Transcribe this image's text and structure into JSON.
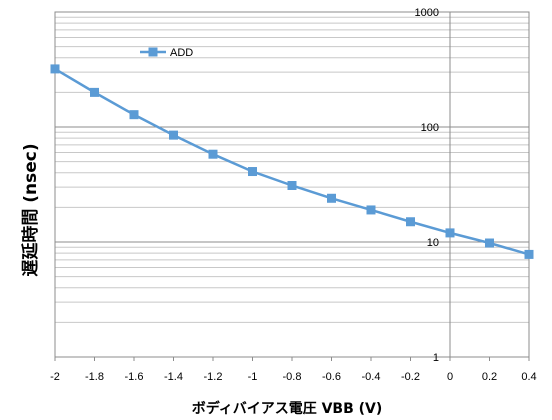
{
  "chart_data": {
    "type": "line",
    "xlabel": "ボディバイアス電圧 VBB (V)",
    "ylabel": "遅延時間 (nsec)",
    "y_scale": "log",
    "xlim": [
      -2,
      0.4
    ],
    "ylim": [
      1,
      1000
    ],
    "grid": true,
    "legend_position": "top-left",
    "x_ticks": [
      "-2",
      "-1.8",
      "-1.6",
      "-1.4",
      "-1.2",
      "-1",
      "-0.8",
      "-0.6",
      "-0.4",
      "-0.2",
      "0",
      "0.2",
      "0.4"
    ],
    "y_ticks": [
      "1",
      "10",
      "100",
      "1000"
    ],
    "series": [
      {
        "name": "ADD",
        "color": "#5b9bd5",
        "marker": "square",
        "x": [
          -2,
          -1.8,
          -1.6,
          -1.4,
          -1.2,
          -1,
          -0.8,
          -0.6,
          -0.4,
          -0.2,
          0,
          0.2,
          0.4
        ],
        "y": [
          320,
          200,
          128,
          85,
          58,
          41,
          31,
          24,
          19,
          15,
          12,
          9.8,
          7.8
        ]
      }
    ]
  }
}
